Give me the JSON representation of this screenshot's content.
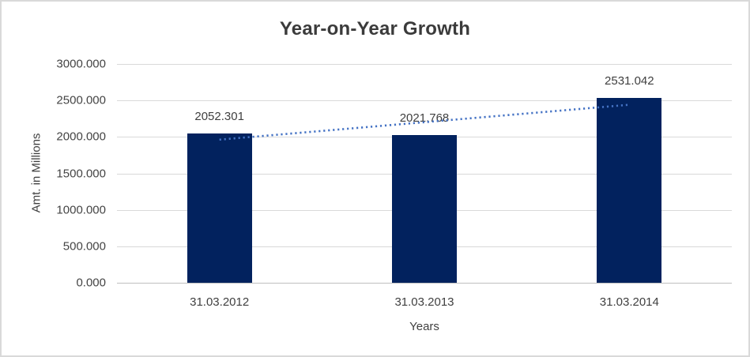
{
  "chart_data": {
    "type": "bar",
    "title": "Year-on-Year Growth",
    "xlabel": "Years",
    "ylabel": "Amt. in Millions",
    "categories": [
      "31.03.2012",
      "31.03.2013",
      "31.03.2014"
    ],
    "values": [
      2052.301,
      2021.768,
      2531.042
    ],
    "data_labels": [
      "2052.301",
      "2021.768",
      "2531.042"
    ],
    "ylim": [
      0,
      3000
    ],
    "ytick_step": 500,
    "ytick_labels": [
      "0.000",
      "500.000",
      "1000.000",
      "1500.000",
      "2000.000",
      "2500.000",
      "3000.000"
    ],
    "grid": true,
    "legend": "none",
    "trendline": {
      "kind": "linear",
      "style": "dotted"
    },
    "colors": {
      "bar_fill": "#02225E",
      "trendline": "#4472C4",
      "gridline": "#D9D9D9",
      "axis_line": "#BFBFBF",
      "title_text": "#3B3B3B",
      "tick_text": "#444444",
      "frame_border": "#D9D9D9"
    }
  }
}
